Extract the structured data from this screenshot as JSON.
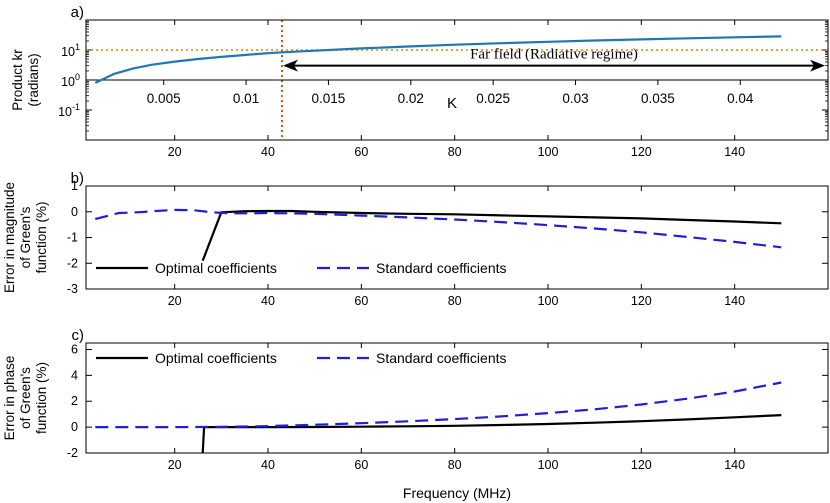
{
  "chart_data": [
    {
      "panel_label": "a)",
      "type": "line",
      "xlabel": "",
      "ylabel": [
        "Product kr",
        "(radians)"
      ],
      "xscale": "linear",
      "yscale": "log",
      "xlim": [
        1,
        160
      ],
      "ylim": [
        0.01,
        100
      ],
      "xticks": [
        20,
        40,
        60,
        80,
        100,
        120,
        140
      ],
      "xtick_labels": [
        "20",
        "40",
        "60",
        "80",
        "100",
        "120",
        "140"
      ],
      "yticks": [
        0.1,
        1,
        10
      ],
      "ytick_labels": [
        {
          "base": "10",
          "exp": "-1"
        },
        {
          "base": "10",
          "exp": "0"
        },
        {
          "base": "10",
          "exp": "1"
        }
      ],
      "series": [
        {
          "name": "kr",
          "color": "#1f77b4",
          "style": "solid",
          "x": [
            3,
            7,
            11,
            15,
            20,
            25,
            30,
            35,
            40,
            43,
            50,
            60,
            70,
            80,
            90,
            100,
            110,
            120,
            130,
            140,
            150
          ],
          "y": [
            0.8,
            1.6,
            2.4,
            3.2,
            4.1,
            5.0,
            5.9,
            6.8,
            7.8,
            8.4,
            9.5,
            11.3,
            13.1,
            15.0,
            16.9,
            18.8,
            20.7,
            22.6,
            24.6,
            26.6,
            28.5
          ]
        }
      ],
      "reference_lines": [
        {
          "orientation": "horizontal",
          "value": 10,
          "color": "#e8a33d",
          "style": "dotted"
        },
        {
          "orientation": "vertical",
          "value": 43,
          "color": "#d95319",
          "style": "dotted"
        }
      ],
      "secondary_axis": {
        "label": "K",
        "ticks": [
          0.005,
          0.01,
          0.015,
          0.02,
          0.025,
          0.03,
          0.035,
          0.04
        ],
        "tick_labels": [
          "0.005",
          "0.01",
          "0.015",
          "0.02",
          "0.025",
          "0.03",
          "0.035",
          "0.04"
        ],
        "freq_per_unit": 3530,
        "axis_y_value": 1,
        "grid": "off"
      },
      "annotation": {
        "text": "Far field (Radiative regime)",
        "arrow_from": 43,
        "arrow_to": 160,
        "y_value": 3
      }
    },
    {
      "panel_label": "b)",
      "type": "line",
      "xlabel": "",
      "ylabel": [
        "Error in magnitude",
        "of Green's",
        "function (%)"
      ],
      "xlim": [
        1,
        160
      ],
      "ylim": [
        -3,
        1
      ],
      "xticks": [
        20,
        40,
        60,
        80,
        100,
        120,
        140
      ],
      "xtick_labels": [
        "20",
        "40",
        "60",
        "80",
        "100",
        "120",
        "140"
      ],
      "yticks": [
        -3,
        -2,
        -1,
        0,
        1
      ],
      "ytick_labels": [
        "-3",
        "-2",
        "-1",
        "0",
        "1"
      ],
      "legend_position": "lower-left",
      "series": [
        {
          "name": "Optimal coefficients",
          "color": "#000000",
          "style": "solid",
          "x": [
            26,
            30,
            35,
            40,
            45,
            50,
            60,
            70,
            80,
            90,
            100,
            110,
            120,
            130,
            140,
            150
          ],
          "y": [
            -1.9,
            -0.02,
            0.02,
            0.03,
            0.03,
            0.0,
            -0.05,
            -0.08,
            -0.1,
            -0.14,
            -0.18,
            -0.22,
            -0.26,
            -0.32,
            -0.38,
            -0.45
          ]
        },
        {
          "name": "Standard coefficients",
          "color": "#1f1fd6",
          "style": "dashed",
          "x": [
            3,
            8,
            12,
            16,
            20,
            24,
            28,
            32,
            36,
            40,
            50,
            60,
            70,
            80,
            90,
            100,
            110,
            120,
            130,
            140,
            150
          ],
          "y": [
            -0.28,
            -0.05,
            -0.02,
            0.03,
            0.07,
            0.06,
            -0.02,
            -0.06,
            -0.06,
            -0.05,
            -0.08,
            -0.15,
            -0.22,
            -0.3,
            -0.4,
            -0.52,
            -0.65,
            -0.8,
            -0.98,
            -1.17,
            -1.38
          ]
        }
      ]
    },
    {
      "panel_label": "c)",
      "type": "line",
      "xlabel": "Frequency (MHz)",
      "ylabel": [
        "Error in phase",
        "of Green's",
        "function (%)"
      ],
      "xlim": [
        1,
        160
      ],
      "ylim": [
        -2,
        6.5
      ],
      "xticks": [
        20,
        40,
        60,
        80,
        100,
        120,
        140
      ],
      "xtick_labels": [
        "20",
        "40",
        "60",
        "80",
        "100",
        "120",
        "140"
      ],
      "yticks": [
        -2,
        0,
        2,
        4,
        6
      ],
      "ytick_labels": [
        "-2",
        "0",
        "2",
        "4",
        "6"
      ],
      "legend_position": "top",
      "series": [
        {
          "name": "Optimal coefficients",
          "color": "#000000",
          "style": "solid",
          "x": [
            26,
            26.3,
            30,
            40,
            50,
            60,
            70,
            80,
            90,
            100,
            110,
            120,
            130,
            140,
            150
          ],
          "y": [
            -2.0,
            0.0,
            0.0,
            0.0,
            0.01,
            0.03,
            0.06,
            0.1,
            0.16,
            0.24,
            0.34,
            0.46,
            0.6,
            0.76,
            0.93
          ]
        },
        {
          "name": "Standard coefficients",
          "color": "#1f1fd6",
          "style": "dashed",
          "x": [
            3,
            10,
            20,
            30,
            40,
            50,
            60,
            70,
            80,
            90,
            100,
            110,
            120,
            130,
            140,
            150
          ],
          "y": [
            0.0,
            0.0,
            0.0,
            0.02,
            0.08,
            0.18,
            0.3,
            0.45,
            0.62,
            0.83,
            1.08,
            1.38,
            1.75,
            2.2,
            2.75,
            3.45
          ]
        }
      ]
    }
  ]
}
